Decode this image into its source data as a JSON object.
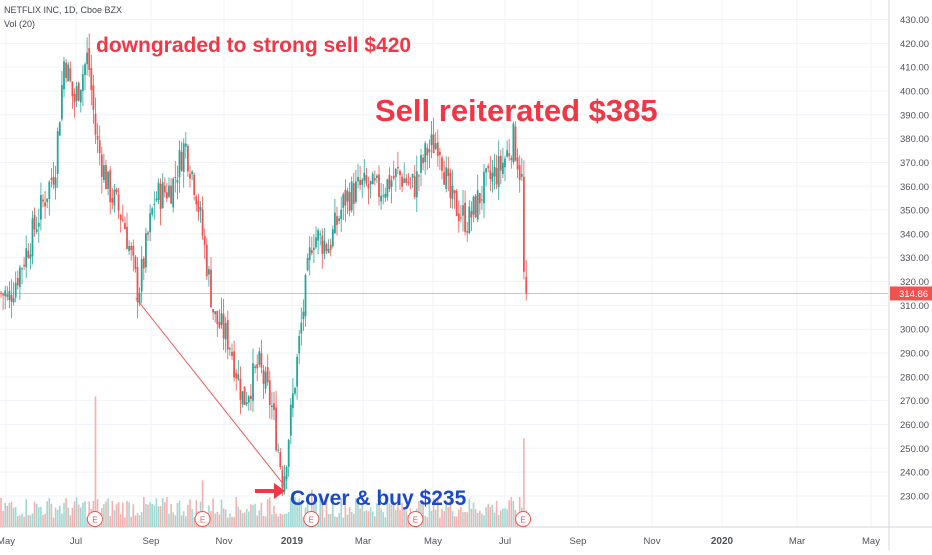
{
  "header": {
    "symbol_line": "NETFLIX INC, 1D, Cboe BZX",
    "volume_line": "Vol (20)"
  },
  "colors": {
    "up": "#26a69a",
    "down": "#ef5350",
    "grid": "#f0f3fa",
    "axis_text": "#50535e",
    "price_tag_bg": "#ef5350",
    "annotation_red": "#f23645",
    "annotation_blue": "#1848cc",
    "earnings_marker": "#ef5350"
  },
  "annotations": {
    "downgrade": "downgraded to strong sell $420",
    "reiterated": "Sell reiterated $385",
    "cover": "Cover & buy $235"
  },
  "chart_data": {
    "type": "candlestick",
    "title": "NETFLIX INC, 1D, Cboe BZX",
    "interval": "1D",
    "x_tick_labels": [
      "May",
      "Jul",
      "Sep",
      "Nov",
      "2019",
      "Mar",
      "May",
      "Jul",
      "Sep",
      "Nov",
      "2020",
      "Mar",
      "May"
    ],
    "y_ticks": [
      230,
      240,
      250,
      260,
      270,
      280,
      290,
      300,
      310,
      320,
      330,
      340,
      350,
      360,
      370,
      380,
      390,
      400,
      410,
      420,
      430
    ],
    "ylim": [
      222,
      434
    ],
    "last_price": "314.86",
    "price_path": [
      {
        "date": "2018-05-01",
        "close": 310
      },
      {
        "date": "2018-05-15",
        "close": 328
      },
      {
        "date": "2018-06-01",
        "close": 352
      },
      {
        "date": "2018-06-12",
        "close": 368
      },
      {
        "date": "2018-06-20",
        "close": 415
      },
      {
        "date": "2018-06-28",
        "close": 395
      },
      {
        "date": "2018-07-10",
        "close": 415
      },
      {
        "date": "2018-07-17",
        "close": 380
      },
      {
        "date": "2018-07-27",
        "close": 360
      },
      {
        "date": "2018-08-10",
        "close": 345
      },
      {
        "date": "2018-08-22",
        "close": 315
      },
      {
        "date": "2018-09-05",
        "close": 355
      },
      {
        "date": "2018-09-20",
        "close": 360
      },
      {
        "date": "2018-10-01",
        "close": 378
      },
      {
        "date": "2018-10-10",
        "close": 360
      },
      {
        "date": "2018-10-19",
        "close": 330
      },
      {
        "date": "2018-10-26",
        "close": 305
      },
      {
        "date": "2018-11-08",
        "close": 295
      },
      {
        "date": "2018-11-20",
        "close": 270
      },
      {
        "date": "2018-12-03",
        "close": 285
      },
      {
        "date": "2018-12-14",
        "close": 268
      },
      {
        "date": "2018-12-24",
        "close": 236
      },
      {
        "date": "2019-01-08",
        "close": 300
      },
      {
        "date": "2019-01-18",
        "close": 340
      },
      {
        "date": "2019-02-01",
        "close": 335
      },
      {
        "date": "2019-02-15",
        "close": 355
      },
      {
        "date": "2019-03-01",
        "close": 360
      },
      {
        "date": "2019-03-15",
        "close": 358
      },
      {
        "date": "2019-04-01",
        "close": 365
      },
      {
        "date": "2019-04-15",
        "close": 360
      },
      {
        "date": "2019-04-26",
        "close": 375
      },
      {
        "date": "2019-05-06",
        "close": 380
      },
      {
        "date": "2019-05-15",
        "close": 355
      },
      {
        "date": "2019-05-31",
        "close": 345
      },
      {
        "date": "2019-06-14",
        "close": 360
      },
      {
        "date": "2019-06-28",
        "close": 368
      },
      {
        "date": "2019-07-09",
        "close": 380
      },
      {
        "date": "2019-07-16",
        "close": 362
      },
      {
        "date": "2019-07-18",
        "close": 315
      }
    ],
    "volume_spikes": [
      {
        "date": "2018-07-17",
        "volume": 56
      },
      {
        "date": "2018-10-16",
        "volume": 20
      },
      {
        "date": "2019-01-18",
        "volume": 16
      },
      {
        "date": "2019-07-18",
        "volume": 38
      }
    ],
    "earnings_dates": [
      "2018-07-16",
      "2018-10-16",
      "2019-01-17",
      "2019-04-16",
      "2019-07-17"
    ],
    "trendline": {
      "from": {
        "date": "2018-08-20",
        "price": 313
      },
      "to": {
        "date": "2018-12-24",
        "price": 235
      }
    },
    "horizontal_line": 315
  }
}
